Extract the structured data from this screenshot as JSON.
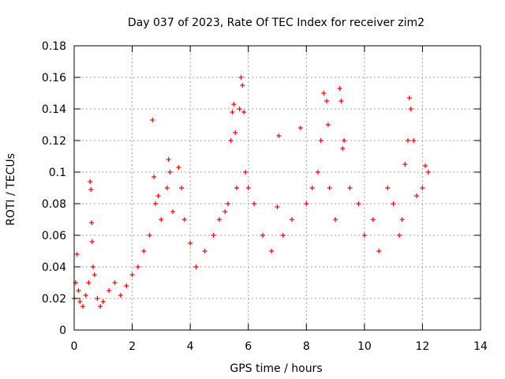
{
  "chart_data": {
    "type": "scatter",
    "title": "Day 037 of 2023, Rate Of TEC Index for receiver zim2",
    "xlabel": "GPS time / hours",
    "ylabel": "ROTI / TECUs",
    "xlim": [
      0,
      14
    ],
    "ylim": [
      0,
      0.18
    ],
    "xticks": [
      "0",
      "2",
      "4",
      "6",
      "8",
      "10",
      "12",
      "14"
    ],
    "yticks": [
      "0",
      "0.02",
      "0.04",
      "0.06",
      "0.08",
      "0.1",
      "0.12",
      "0.14",
      "0.16",
      "0.18"
    ],
    "grid": true,
    "marker": "+",
    "color": "#ff0000",
    "series": [
      {
        "x": [
          0.0,
          0.05,
          0.1,
          0.15,
          0.2,
          0.3,
          0.4,
          0.5,
          0.55,
          0.58,
          0.6,
          0.62,
          0.65,
          0.7,
          0.8,
          0.9,
          1.0,
          1.2,
          1.4,
          1.6,
          1.8,
          2.0,
          2.2,
          2.4,
          2.6,
          2.7,
          2.75,
          2.8,
          2.9,
          3.0,
          3.2,
          3.25,
          3.3,
          3.4,
          3.6,
          3.7,
          3.8,
          4.0,
          4.2,
          4.5,
          4.8,
          5.0,
          5.2,
          5.3,
          5.4,
          5.45,
          5.5,
          5.55,
          5.6,
          5.7,
          5.75,
          5.8,
          5.85,
          5.9,
          6.0,
          6.2,
          6.5,
          6.8,
          7.0,
          7.05,
          7.2,
          7.5,
          7.8,
          8.0,
          8.2,
          8.4,
          8.5,
          8.6,
          8.7,
          8.75,
          8.8,
          9.0,
          9.15,
          9.2,
          9.25,
          9.3,
          9.5,
          9.8,
          10.0,
          10.3,
          10.5,
          10.8,
          11.0,
          11.2,
          11.3,
          11.4,
          11.5,
          11.55,
          11.6,
          11.7,
          11.8,
          12.0,
          12.1,
          12.2
        ],
        "y": [
          0.02,
          0.03,
          0.048,
          0.025,
          0.018,
          0.015,
          0.022,
          0.03,
          0.094,
          0.089,
          0.068,
          0.056,
          0.04,
          0.035,
          0.02,
          0.015,
          0.018,
          0.025,
          0.03,
          0.022,
          0.028,
          0.035,
          0.04,
          0.05,
          0.06,
          0.133,
          0.097,
          0.08,
          0.085,
          0.07,
          0.09,
          0.108,
          0.1,
          0.075,
          0.103,
          0.09,
          0.07,
          0.055,
          0.04,
          0.05,
          0.06,
          0.07,
          0.075,
          0.08,
          0.12,
          0.138,
          0.143,
          0.125,
          0.09,
          0.14,
          0.16,
          0.155,
          0.138,
          0.1,
          0.09,
          0.08,
          0.06,
          0.05,
          0.078,
          0.123,
          0.06,
          0.07,
          0.128,
          0.08,
          0.09,
          0.1,
          0.12,
          0.15,
          0.145,
          0.13,
          0.09,
          0.07,
          0.153,
          0.145,
          0.115,
          0.12,
          0.09,
          0.08,
          0.06,
          0.07,
          0.05,
          0.09,
          0.08,
          0.06,
          0.07,
          0.105,
          0.12,
          0.147,
          0.14,
          0.12,
          0.085,
          0.09,
          0.104,
          0.1
        ]
      }
    ]
  }
}
